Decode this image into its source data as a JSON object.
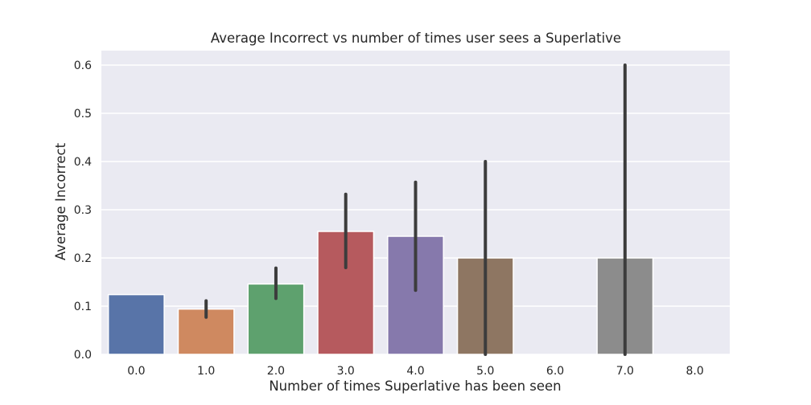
{
  "chart_data": {
    "type": "bar",
    "title": "Average Incorrect vs number of times user sees a Superlative",
    "xlabel": "Number of times Superlative has been seen",
    "ylabel": "Average Incorrect",
    "categories": [
      "0.0",
      "1.0",
      "2.0",
      "3.0",
      "4.0",
      "5.0",
      "6.0",
      "7.0",
      "8.0"
    ],
    "values": [
      0.124,
      0.094,
      0.146,
      0.255,
      0.245,
      0.2,
      0.0,
      0.2,
      0.0
    ],
    "error_low": [
      null,
      0.077,
      0.116,
      0.18,
      0.133,
      0.0,
      null,
      0.0,
      null
    ],
    "error_high": [
      null,
      0.111,
      0.179,
      0.332,
      0.357,
      0.4,
      null,
      0.6,
      null
    ],
    "ylim": [
      0,
      0.63
    ],
    "yticks": [
      "0.0",
      "0.1",
      "0.2",
      "0.3",
      "0.4",
      "0.5",
      "0.6"
    ],
    "grid": true,
    "background": "#eaeaf2",
    "bar_colors": [
      "#5874a8",
      "#cf8960",
      "#5ea16e",
      "#b65a5e",
      "#8679ac",
      "#8e7662",
      "#c98fbf",
      "#8c8c8c",
      "#c1b77a"
    ],
    "error_color": "#3c3c3c"
  }
}
